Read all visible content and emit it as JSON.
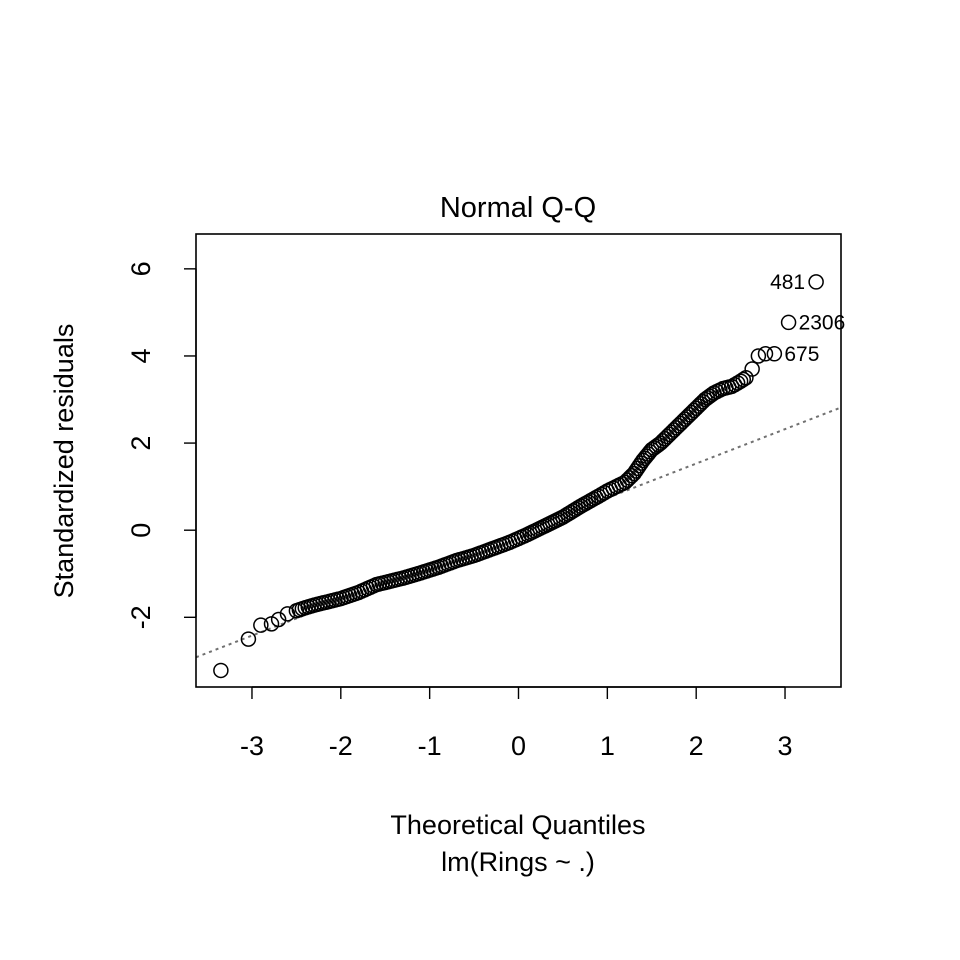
{
  "chart_data": {
    "type": "scatter",
    "title": "Normal Q-Q",
    "xlabel": "Theoretical Quantiles",
    "subtitle": "lm(Rings ~ .)",
    "ylabel": "Standardized residuals",
    "xlim": [
      -3.63,
      3.63
    ],
    "ylim": [
      -3.6,
      6.8
    ],
    "xticks": [
      -3,
      -2,
      -1,
      0,
      1,
      2,
      3
    ],
    "yticks": [
      -2,
      0,
      2,
      4,
      6
    ],
    "grid": false,
    "legend": "none",
    "reference_line": {
      "intercept": -0.05,
      "slope": 0.79,
      "style": "dotted",
      "color": "#707070"
    },
    "qq_curve": {
      "x": [
        -3.35,
        -3.04,
        -2.9,
        -2.78,
        -2.7,
        -2.6,
        -2.5,
        -2.4,
        -2.3,
        -2.2,
        -2.1,
        -2.0,
        -1.9,
        -1.8,
        -1.7,
        -1.6,
        -1.5,
        -1.3,
        -1.1,
        -0.9,
        -0.7,
        -0.5,
        -0.3,
        -0.1,
        0.1,
        0.3,
        0.5,
        0.7,
        0.9,
        1.0,
        1.1,
        1.2,
        1.3,
        1.4,
        1.5,
        1.6,
        1.7,
        1.8,
        1.9,
        2.0,
        2.1,
        2.2,
        2.3,
        2.4,
        2.5,
        2.56,
        2.63,
        2.7
      ],
      "y": [
        -3.22,
        -2.5,
        -2.18,
        -2.15,
        -2.05,
        -1.92,
        -1.85,
        -1.78,
        -1.72,
        -1.67,
        -1.62,
        -1.57,
        -1.5,
        -1.43,
        -1.34,
        -1.25,
        -1.2,
        -1.1,
        -0.98,
        -0.85,
        -0.7,
        -0.58,
        -0.43,
        -0.28,
        -0.1,
        0.1,
        0.3,
        0.55,
        0.78,
        0.9,
        1.0,
        1.1,
        1.3,
        1.6,
        1.85,
        2.0,
        2.2,
        2.4,
        2.6,
        2.8,
        3.0,
        3.15,
        3.25,
        3.3,
        3.42,
        3.5,
        3.7,
        4.0
      ],
      "n": 4177
    },
    "points": [
      {
        "x": 3.35,
        "y": 5.7,
        "label": "481",
        "label_side": "left"
      },
      {
        "x": 3.04,
        "y": 4.77,
        "label": "2306",
        "label_side": "right"
      },
      {
        "x": 2.88,
        "y": 4.05,
        "label": "675",
        "label_side": "right"
      },
      {
        "x": 2.78,
        "y": 4.05
      }
    ]
  }
}
